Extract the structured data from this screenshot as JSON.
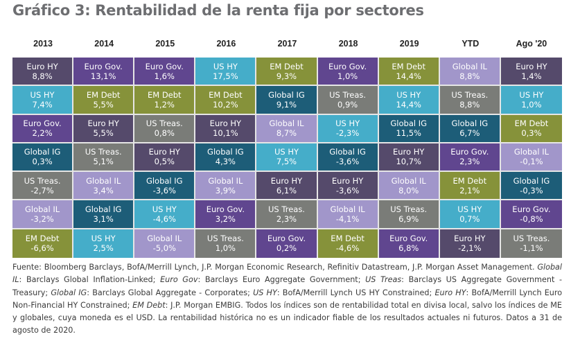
{
  "chart_data": {
    "type": "table",
    "title": "Gráfico 3: Rentabilidad de la renta fija por sectores",
    "columns": [
      "2013",
      "2014",
      "2015",
      "2016",
      "2017",
      "2018",
      "2019",
      "YTD",
      "Ago '20"
    ],
    "sector_colors": {
      "Euro HY": "#554a6b",
      "Euro Gov.": "#60468f",
      "US HY": "#45adc9",
      "EM Debt": "#86923a",
      "US Treas.": "#7a7c78",
      "Global IG": "#1d5d78",
      "Global IL": "#a196ca"
    },
    "ranking": [
      [
        {
          "sector": "Euro HY",
          "value": "8,8%"
        },
        {
          "sector": "US HY",
          "value": "7,4%"
        },
        {
          "sector": "Euro Gov.",
          "value": "2,2%"
        },
        {
          "sector": "Global IG",
          "value": "0,3%"
        },
        {
          "sector": "US Treas.",
          "value": "-2,7%"
        },
        {
          "sector": "Global IL",
          "value": "-3,2%"
        },
        {
          "sector": "EM Debt",
          "value": "-6,6%"
        }
      ],
      [
        {
          "sector": "Euro Gov.",
          "value": "13,1%"
        },
        {
          "sector": "EM Debt",
          "value": "5,5%"
        },
        {
          "sector": "Euro HY",
          "value": "5,5%"
        },
        {
          "sector": "US Treas.",
          "value": "5,1%"
        },
        {
          "sector": "Global IL",
          "value": "3,4%"
        },
        {
          "sector": "Global IG",
          "value": "3,1%"
        },
        {
          "sector": "US HY",
          "value": "2,5%"
        }
      ],
      [
        {
          "sector": "Euro Gov.",
          "value": "1,6%"
        },
        {
          "sector": "EM Debt",
          "value": "1,2%"
        },
        {
          "sector": "US Treas.",
          "value": "0,8%"
        },
        {
          "sector": "Euro HY",
          "value": "0,5%"
        },
        {
          "sector": "Global IG",
          "value": "-3,6%"
        },
        {
          "sector": "US HY",
          "value": "-4,6%"
        },
        {
          "sector": "Global IL",
          "value": "-5,0%"
        }
      ],
      [
        {
          "sector": "US HY",
          "value": "17,5%"
        },
        {
          "sector": "EM Debt",
          "value": "10,2%"
        },
        {
          "sector": "Euro HY",
          "value": "10,1%"
        },
        {
          "sector": "Global IG",
          "value": "4,3%"
        },
        {
          "sector": "Global IL",
          "value": "3,9%"
        },
        {
          "sector": "Euro Gov.",
          "value": "3,2%"
        },
        {
          "sector": "US Treas.",
          "value": "1,0%"
        }
      ],
      [
        {
          "sector": "EM Debt",
          "value": "9,3%"
        },
        {
          "sector": "Global IG",
          "value": "9,1%"
        },
        {
          "sector": "Global IL",
          "value": "8,7%"
        },
        {
          "sector": "US HY",
          "value": "7,5%"
        },
        {
          "sector": "Euro HY",
          "value": "6,1%"
        },
        {
          "sector": "US Treas.",
          "value": "2,3%"
        },
        {
          "sector": "Euro Gov.",
          "value": "0,2%"
        }
      ],
      [
        {
          "sector": "Euro Gov.",
          "value": "1,0%"
        },
        {
          "sector": "US Treas.",
          "value": "0,9%"
        },
        {
          "sector": "US HY",
          "value": "-2,3%"
        },
        {
          "sector": "Global IG",
          "value": "-3,6%"
        },
        {
          "sector": "Euro HY",
          "value": "-3,6%"
        },
        {
          "sector": "Global IL",
          "value": "-4,1%"
        },
        {
          "sector": "EM Debt",
          "value": "-4,6%"
        }
      ],
      [
        {
          "sector": "EM Debt",
          "value": "14,4%"
        },
        {
          "sector": "US HY",
          "value": "14,4%"
        },
        {
          "sector": "Global IG",
          "value": "11,5%"
        },
        {
          "sector": "Euro HY",
          "value": "10,7%"
        },
        {
          "sector": "Global IL",
          "value": "8,0%"
        },
        {
          "sector": "US Treas.",
          "value": "6,9%"
        },
        {
          "sector": "Euro Gov.",
          "value": "6,8%"
        }
      ],
      [
        {
          "sector": "Global IL",
          "value": "8,8%"
        },
        {
          "sector": "US Treas.",
          "value": "8,8%"
        },
        {
          "sector": "Global IG",
          "value": "6,7%"
        },
        {
          "sector": "Euro Gov.",
          "value": "2,3%"
        },
        {
          "sector": "EM Debt",
          "value": "2,1%"
        },
        {
          "sector": "US HY",
          "value": "0,7%"
        },
        {
          "sector": "Euro HY",
          "value": "-2,1%"
        }
      ],
      [
        {
          "sector": "Euro HY",
          "value": "1,4%"
        },
        {
          "sector": "US HY",
          "value": "1,0%"
        },
        {
          "sector": "EM Debt",
          "value": "0,3%"
        },
        {
          "sector": "Global IL",
          "value": "-0,1%"
        },
        {
          "sector": "Global IG",
          "value": "-0,3%"
        },
        {
          "sector": "Euro Gov.",
          "value": "-0,8%"
        },
        {
          "sector": "US Treas.",
          "value": "-1,1%"
        }
      ]
    ]
  },
  "note": {
    "source": "Fuente: Bloomberg Barclays, BofA/Merrill Lynch, J.P. Morgan Economic Research, Refinitiv Datastream, J.P. Morgan Asset Management.",
    "definitions": [
      {
        "term": "Global IL",
        "text": "Barclays Global Inflation-Linked;"
      },
      {
        "term": "Euro Gov",
        "text": "Barclays Euro Aggregate Government;"
      },
      {
        "term": "US Treas",
        "text": "Barclays US Aggregate Government - Treasury;"
      },
      {
        "term": "Global IG",
        "text": "Barclays Global Aggregate - Corporates;"
      },
      {
        "term": "US HY",
        "text": "BofA/Merrill Lynch US HY Constrained;"
      },
      {
        "term": "Euro HY",
        "text": "BofA/Merrill Lynch Euro Non-Financial HY Constrained;"
      },
      {
        "term": "EM Debt",
        "text": "J.P. Morgan EMBIG."
      }
    ],
    "disclaimer": "Todos los índices son de rentabilidad total en divisa local, salvo los índices de ME y globales, cuya moneda es el USD. La rentabilidad histórica no es un indicador fiable de los resultados actuales ni futuros. Datos a 31 de agosto de 2020."
  }
}
